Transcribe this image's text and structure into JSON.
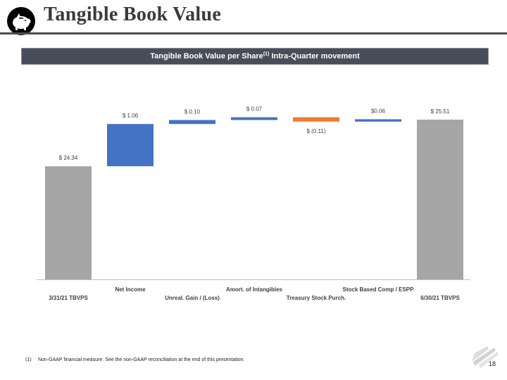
{
  "header": {
    "title": "Tangible Book Value",
    "logo_icon": "piggy-bank-icon"
  },
  "banner": {
    "text": "Tangible Book Value per Share",
    "superscript": "(1)",
    "suffix": "Intra-Quarter movement"
  },
  "colors": {
    "total": "#a6a6a6",
    "increase": "#4472c4",
    "decrease": "#ed7d31",
    "banner": "#484d59"
  },
  "chart_data": {
    "type": "bar",
    "subtype": "waterfall",
    "categories": [
      "3/31/21 TBVPS",
      "Net Income",
      "Unreal. Gain / (Loss)",
      "Amort. of Intangibles",
      "Treasury Stock Purch.",
      "Stock Based Comp / ESPP",
      "6/30/21 TBVPS"
    ],
    "values": [
      24.34,
      1.06,
      0.1,
      0.07,
      -0.11,
      0.06,
      25.51
    ],
    "kinds": [
      "total",
      "increase",
      "increase",
      "increase",
      "decrease",
      "increase",
      "total"
    ],
    "data_labels": [
      "$ 24.34",
      "$ 1.06",
      "$ 0.10",
      "$ 0.07",
      "$ (0.11)",
      "$0.06",
      "$ 25.51"
    ],
    "ylim": [
      21.5,
      25.6
    ],
    "grid": false,
    "legend": "none"
  },
  "footnote": {
    "marker": "(1)",
    "text": "Non-GAAP financial measure. See the non-GAAP reconciliation at the end of this presentation."
  },
  "page_number": "18",
  "watermark_icon": "bank-logo-icon"
}
